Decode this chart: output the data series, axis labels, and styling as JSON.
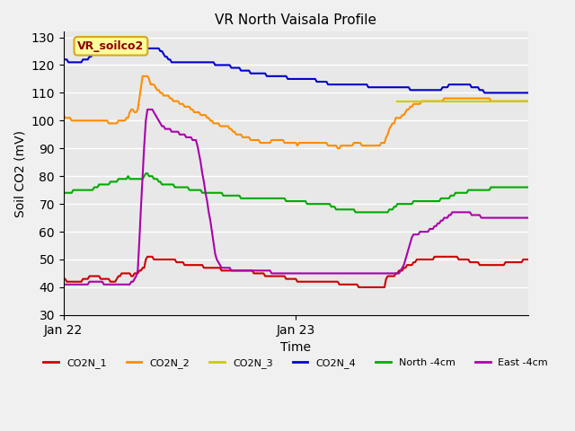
{
  "title": "VR North Vaisala Profile",
  "ylabel": "Soil CO2 (mV)",
  "xlabel": "Time",
  "ylim": [
    30,
    132
  ],
  "yticks": [
    30,
    40,
    50,
    60,
    70,
    80,
    90,
    100,
    110,
    120,
    130
  ],
  "annotation_text": "VR_soilco2",
  "annotation_color": "#8B0000",
  "annotation_bg": "#FFFF99",
  "annotation_border": "#DAA520",
  "plot_bg": "#E8E8E8",
  "fig_bg": "#F0F0F0",
  "series_colors": [
    "#CC0000",
    "#FF8C00",
    "#CCCC00",
    "#0000CC",
    "#00AA00",
    "#AA00AA"
  ],
  "series_keys": [
    "CO2N_1",
    "CO2N_2",
    "CO2N_3",
    "CO2N_4",
    "North_4cm",
    "East_4cm"
  ],
  "legend_labels": [
    "CO2N_1",
    "CO2N_2",
    "CO2N_3",
    "CO2N_4",
    "North -4cm",
    "East -4cm"
  ],
  "xtick_labels": [
    "Jan 22",
    "Jan 23"
  ],
  "xtick_positions": [
    0,
    144
  ],
  "n_points": 289,
  "CO2N_1": [
    43,
    43,
    42,
    42,
    42,
    42,
    42,
    42,
    42,
    42,
    42,
    42,
    43,
    43,
    43,
    43,
    44,
    44,
    44,
    44,
    44,
    44,
    44,
    43,
    43,
    43,
    43,
    43,
    43,
    42,
    42,
    42,
    42,
    43,
    44,
    44,
    45,
    45,
    45,
    45,
    45,
    45,
    44,
    44,
    45,
    45,
    45,
    46,
    46,
    47,
    47,
    50,
    51,
    51,
    51,
    51,
    50,
    50,
    50,
    50,
    50,
    50,
    50,
    50,
    50,
    50,
    50,
    50,
    50,
    50,
    49,
    49,
    49,
    49,
    49,
    48,
    48,
    48,
    48,
    48,
    48,
    48,
    48,
    48,
    48,
    48,
    48,
    47,
    47,
    47,
    47,
    47,
    47,
    47,
    47,
    47,
    47,
    47,
    46,
    46,
    46,
    46,
    46,
    46,
    46,
    46,
    46,
    46,
    46,
    46,
    46,
    46,
    46,
    46,
    46,
    46,
    46,
    46,
    45,
    45,
    45,
    45,
    45,
    45,
    45,
    44,
    44,
    44,
    44,
    44,
    44,
    44,
    44,
    44,
    44,
    44,
    44,
    44,
    43,
    43,
    43,
    43,
    43,
    43,
    43,
    42,
    42,
    42,
    42,
    42,
    42,
    42,
    42,
    42,
    42,
    42,
    42,
    42,
    42,
    42,
    42,
    42,
    42,
    42,
    42,
    42,
    42,
    42,
    42,
    42,
    42,
    41,
    41,
    41,
    41,
    41,
    41,
    41,
    41,
    41,
    41,
    41,
    41,
    40,
    40,
    40,
    40,
    40,
    40,
    40,
    40,
    40,
    40,
    40,
    40,
    40,
    40,
    40,
    40,
    40,
    43,
    44,
    44,
    44,
    44,
    44,
    45,
    45,
    46,
    46,
    46,
    47,
    47,
    48,
    48,
    48,
    48,
    49,
    49,
    50,
    50,
    50,
    50,
    50,
    50,
    50,
    50,
    50,
    50,
    50,
    51,
    51,
    51,
    51,
    51,
    51,
    51,
    51,
    51,
    51,
    51,
    51,
    51,
    51,
    51,
    50,
    50,
    50,
    50,
    50,
    50,
    50,
    49,
    49,
    49,
    49,
    49,
    49,
    48,
    48,
    48,
    48,
    48,
    48,
    48,
    48,
    48,
    48,
    48,
    48,
    48,
    48,
    48,
    48,
    49,
    49,
    49,
    49,
    49,
    49,
    49,
    49,
    49,
    49,
    49,
    50,
    50,
    50,
    50
  ],
  "CO2N_2": [
    102,
    101,
    101,
    101,
    101,
    100,
    100,
    100,
    100,
    100,
    100,
    100,
    100,
    100,
    100,
    100,
    100,
    100,
    100,
    100,
    100,
    100,
    100,
    100,
    100,
    100,
    100,
    100,
    99,
    99,
    99,
    99,
    99,
    99,
    100,
    100,
    100,
    100,
    100,
    101,
    101,
    103,
    104,
    104,
    103,
    103,
    104,
    108,
    112,
    116,
    116,
    116,
    116,
    115,
    113,
    113,
    113,
    112,
    111,
    111,
    110,
    110,
    109,
    109,
    109,
    109,
    108,
    108,
    107,
    107,
    107,
    107,
    106,
    106,
    106,
    105,
    105,
    105,
    105,
    104,
    104,
    103,
    103,
    103,
    103,
    102,
    102,
    102,
    102,
    101,
    101,
    100,
    100,
    99,
    99,
    99,
    99,
    98,
    98,
    98,
    98,
    98,
    98,
    97,
    97,
    96,
    96,
    95,
    95,
    95,
    95,
    94,
    94,
    94,
    94,
    94,
    93,
    93,
    93,
    93,
    93,
    93,
    92,
    92,
    92,
    92,
    92,
    92,
    92,
    93,
    93,
    93,
    93,
    93,
    93,
    93,
    93,
    92,
    92,
    92,
    92,
    92,
    92,
    92,
    92,
    91,
    92,
    92,
    92,
    92,
    92,
    92,
    92,
    92,
    92,
    92,
    92,
    92,
    92,
    92,
    92,
    92,
    92,
    92,
    91,
    91,
    91,
    91,
    91,
    91,
    90,
    90,
    91,
    91,
    91,
    91,
    91,
    91,
    91,
    91,
    92,
    92,
    92,
    92,
    92,
    91,
    91,
    91,
    91,
    91,
    91,
    91,
    91,
    91,
    91,
    91,
    91,
    92,
    92,
    92,
    94,
    95,
    97,
    98,
    99,
    99,
    101,
    101,
    101,
    101,
    102,
    102,
    103,
    104,
    104,
    105,
    105,
    106,
    106,
    106,
    106,
    106,
    107,
    107,
    107,
    107,
    107,
    107,
    107,
    107,
    107,
    107,
    107,
    107,
    107,
    107,
    108,
    108,
    108,
    108,
    108,
    108,
    108,
    108,
    108,
    108,
    108,
    108,
    108,
    108,
    108,
    108,
    108,
    108,
    108,
    108,
    108,
    108,
    108,
    108,
    108,
    108,
    108,
    108,
    108,
    107,
    107,
    107,
    107,
    107,
    107,
    107,
    107,
    107,
    107,
    107,
    107,
    107,
    107,
    107,
    107,
    107,
    107,
    107,
    107,
    107,
    107,
    107,
    107
  ],
  "CO2N_3": [
    null,
    null,
    null,
    null,
    null,
    null,
    null,
    null,
    null,
    null,
    null,
    null,
    null,
    null,
    null,
    null,
    null,
    null,
    null,
    null,
    null,
    null,
    null,
    null,
    null,
    null,
    null,
    null,
    null,
    null,
    null,
    null,
    null,
    null,
    null,
    null,
    null,
    null,
    null,
    null,
    null,
    null,
    null,
    null,
    null,
    null,
    null,
    null,
    null,
    null,
    null,
    null,
    null,
    null,
    null,
    null,
    null,
    null,
    null,
    null,
    null,
    null,
    null,
    null,
    null,
    null,
    null,
    null,
    null,
    null,
    null,
    null,
    null,
    null,
    null,
    null,
    null,
    null,
    null,
    null,
    null,
    null,
    null,
    null,
    null,
    null,
    null,
    null,
    null,
    null,
    null,
    null,
    null,
    null,
    null,
    null,
    null,
    null,
    null,
    null,
    null,
    null,
    null,
    null,
    null,
    null,
    null,
    null,
    null,
    null,
    null,
    null,
    null,
    null,
    null,
    null,
    null,
    null,
    null,
    null,
    null,
    null,
    null,
    null,
    null,
    null,
    null,
    null,
    null,
    null,
    null,
    null,
    null,
    null,
    null,
    null,
    null,
    null,
    null,
    null,
    null,
    null,
    null,
    null,
    null,
    null,
    null,
    null,
    null,
    null,
    null,
    null,
    null,
    null,
    null,
    null,
    null,
    null,
    null,
    null,
    null,
    null,
    null,
    null,
    null,
    null,
    null,
    null,
    null,
    null,
    null,
    null,
    null,
    null,
    null,
    null,
    null,
    null,
    null,
    null,
    null,
    null,
    null,
    null,
    null,
    null,
    null,
    null,
    null,
    null,
    null,
    null,
    null,
    null,
    null,
    null,
    null,
    null,
    null,
    null,
    null,
    null,
    null,
    null,
    null,
    null,
    null,
    107,
    107,
    107,
    107,
    107,
    107,
    107,
    107,
    107,
    107,
    107,
    107,
    107,
    107,
    107,
    107,
    107,
    107,
    107,
    107,
    107,
    107,
    107,
    107,
    107,
    107,
    107,
    107,
    107,
    107,
    107,
    107,
    107,
    107,
    107,
    107,
    107,
    107,
    107,
    107,
    107,
    107,
    107,
    107,
    107,
    107,
    107,
    107,
    107,
    107,
    107,
    107,
    107,
    107,
    107,
    107,
    107,
    107,
    107,
    107,
    107,
    107,
    107,
    107,
    107,
    107,
    107,
    107,
    107,
    107,
    107,
    107,
    107,
    107,
    107,
    107,
    107,
    107,
    107,
    107,
    107,
    107
  ],
  "CO2N_4": [
    122,
    122,
    122,
    121,
    121,
    121,
    121,
    121,
    121,
    121,
    121,
    121,
    122,
    122,
    122,
    122,
    123,
    123,
    124,
    124,
    124,
    124,
    124,
    124,
    124,
    124,
    124,
    124,
    124,
    124,
    124,
    124,
    124,
    124,
    125,
    125,
    125,
    125,
    125,
    125,
    125,
    125,
    125,
    125,
    125,
    125,
    125,
    125,
    125,
    125,
    126,
    126,
    126,
    126,
    126,
    126,
    126,
    126,
    126,
    126,
    125,
    125,
    124,
    123,
    123,
    122,
    122,
    121,
    121,
    121,
    121,
    121,
    121,
    121,
    121,
    121,
    121,
    121,
    121,
    121,
    121,
    121,
    121,
    121,
    121,
    121,
    121,
    121,
    121,
    121,
    121,
    121,
    121,
    121,
    120,
    120,
    120,
    120,
    120,
    120,
    120,
    120,
    120,
    120,
    119,
    119,
    119,
    119,
    119,
    119,
    118,
    118,
    118,
    118,
    118,
    118,
    117,
    117,
    117,
    117,
    117,
    117,
    117,
    117,
    117,
    117,
    116,
    116,
    116,
    116,
    116,
    116,
    116,
    116,
    116,
    116,
    116,
    116,
    116,
    115,
    115,
    115,
    115,
    115,
    115,
    115,
    115,
    115,
    115,
    115,
    115,
    115,
    115,
    115,
    115,
    115,
    115,
    114,
    114,
    114,
    114,
    114,
    114,
    114,
    113,
    113,
    113,
    113,
    113,
    113,
    113,
    113,
    113,
    113,
    113,
    113,
    113,
    113,
    113,
    113,
    113,
    113,
    113,
    113,
    113,
    113,
    113,
    113,
    113,
    112,
    112,
    112,
    112,
    112,
    112,
    112,
    112,
    112,
    112,
    112,
    112,
    112,
    112,
    112,
    112,
    112,
    112,
    112,
    112,
    112,
    112,
    112,
    112,
    112,
    112,
    111,
    111,
    111,
    111,
    111,
    111,
    111,
    111,
    111,
    111,
    111,
    111,
    111,
    111,
    111,
    111,
    111,
    111,
    111,
    111,
    112,
    112,
    112,
    112,
    113,
    113,
    113,
    113,
    113,
    113,
    113,
    113,
    113,
    113,
    113,
    113,
    113,
    113,
    112,
    112,
    112,
    112,
    112,
    111,
    111,
    111,
    110,
    110,
    110,
    110,
    110,
    110,
    110,
    110,
    110,
    110,
    110,
    110,
    110,
    110,
    110,
    110,
    110,
    110,
    110,
    110,
    110,
    110,
    110,
    110,
    110,
    110,
    110,
    110
  ],
  "North_4cm": [
    74,
    74,
    74,
    74,
    74,
    74,
    75,
    75,
    75,
    75,
    75,
    75,
    75,
    75,
    75,
    75,
    75,
    75,
    75,
    76,
    76,
    76,
    77,
    77,
    77,
    77,
    77,
    77,
    77,
    78,
    78,
    78,
    78,
    78,
    79,
    79,
    79,
    79,
    79,
    79,
    80,
    79,
    79,
    79,
    79,
    79,
    79,
    79,
    79,
    79,
    80,
    81,
    81,
    80,
    80,
    80,
    79,
    79,
    79,
    78,
    78,
    77,
    77,
    77,
    77,
    77,
    77,
    77,
    77,
    76,
    76,
    76,
    76,
    76,
    76,
    76,
    76,
    76,
    75,
    75,
    75,
    75,
    75,
    75,
    75,
    75,
    74,
    74,
    74,
    74,
    74,
    74,
    74,
    74,
    74,
    74,
    74,
    74,
    74,
    73,
    73,
    73,
    73,
    73,
    73,
    73,
    73,
    73,
    73,
    73,
    72,
    72,
    72,
    72,
    72,
    72,
    72,
    72,
    72,
    72,
    72,
    72,
    72,
    72,
    72,
    72,
    72,
    72,
    72,
    72,
    72,
    72,
    72,
    72,
    72,
    72,
    72,
    72,
    71,
    71,
    71,
    71,
    71,
    71,
    71,
    71,
    71,
    71,
    71,
    71,
    71,
    70,
    70,
    70,
    70,
    70,
    70,
    70,
    70,
    70,
    70,
    70,
    70,
    70,
    70,
    70,
    69,
    69,
    69,
    68,
    68,
    68,
    68,
    68,
    68,
    68,
    68,
    68,
    68,
    68,
    68,
    67,
    67,
    67,
    67,
    67,
    67,
    67,
    67,
    67,
    67,
    67,
    67,
    67,
    67,
    67,
    67,
    67,
    67,
    67,
    67,
    67,
    68,
    68,
    68,
    69,
    69,
    70,
    70,
    70,
    70,
    70,
    70,
    70,
    70,
    70,
    70,
    71,
    71,
    71,
    71,
    71,
    71,
    71,
    71,
    71,
    71,
    71,
    71,
    71,
    71,
    71,
    71,
    71,
    72,
    72,
    72,
    72,
    72,
    72,
    73,
    73,
    73,
    74,
    74,
    74,
    74,
    74,
    74,
    74,
    74,
    75,
    75,
    75,
    75,
    75,
    75,
    75,
    75,
    75,
    75,
    75,
    75,
    75,
    75,
    76,
    76,
    76,
    76,
    76,
    76,
    76,
    76,
    76,
    76,
    76,
    76,
    76,
    76,
    76,
    76,
    76,
    76,
    76,
    76,
    76,
    76,
    76,
    76
  ],
  "East_4cm": [
    41,
    41,
    41,
    41,
    41,
    41,
    41,
    41,
    41,
    41,
    41,
    41,
    41,
    41,
    41,
    41,
    42,
    42,
    42,
    42,
    42,
    42,
    42,
    42,
    42,
    41,
    41,
    41,
    41,
    41,
    41,
    41,
    41,
    41,
    41,
    41,
    41,
    41,
    41,
    41,
    41,
    41,
    42,
    42,
    43,
    44,
    46,
    57,
    69,
    80,
    91,
    100,
    104,
    104,
    104,
    104,
    103,
    102,
    101,
    100,
    99,
    98,
    98,
    97,
    97,
    97,
    97,
    96,
    96,
    96,
    96,
    96,
    95,
    95,
    95,
    95,
    94,
    94,
    94,
    94,
    93,
    93,
    93,
    91,
    88,
    85,
    81,
    78,
    74,
    71,
    67,
    64,
    60,
    56,
    52,
    50,
    49,
    48,
    47,
    47,
    47,
    47,
    47,
    47,
    46,
    46,
    46,
    46,
    46,
    46,
    46,
    46,
    46,
    46,
    46,
    46,
    46,
    46,
    46,
    46,
    46,
    46,
    46,
    46,
    46,
    46,
    46,
    46,
    46,
    45,
    45,
    45,
    45,
    45,
    45,
    45,
    45,
    45,
    45,
    45,
    45,
    45,
    45,
    45,
    45,
    45,
    45,
    45,
    45,
    45,
    45,
    45,
    45,
    45,
    45,
    45,
    45,
    45,
    45,
    45,
    45,
    45,
    45,
    45,
    45,
    45,
    45,
    45,
    45,
    45,
    45,
    45,
    45,
    45,
    45,
    45,
    45,
    45,
    45,
    45,
    45,
    45,
    45,
    45,
    45,
    45,
    45,
    45,
    45,
    45,
    45,
    45,
    45,
    45,
    45,
    45,
    45,
    45,
    45,
    45,
    45,
    45,
    45,
    45,
    45,
    45,
    45,
    45,
    45,
    46,
    47,
    48,
    50,
    52,
    54,
    56,
    58,
    59,
    59,
    59,
    59,
    60,
    60,
    60,
    60,
    60,
    60,
    61,
    61,
    61,
    62,
    62,
    63,
    63,
    64,
    64,
    65,
    65,
    65,
    66,
    66,
    67,
    67,
    67,
    67,
    67,
    67,
    67,
    67,
    67,
    67,
    67,
    67,
    66,
    66,
    66,
    66,
    66,
    66,
    65,
    65,
    65,
    65,
    65,
    65,
    65,
    65,
    65,
    65,
    65,
    65,
    65,
    65,
    65,
    65,
    65,
    65,
    65,
    65,
    65,
    65,
    65,
    65,
    65,
    65,
    65,
    65,
    65,
    65
  ]
}
